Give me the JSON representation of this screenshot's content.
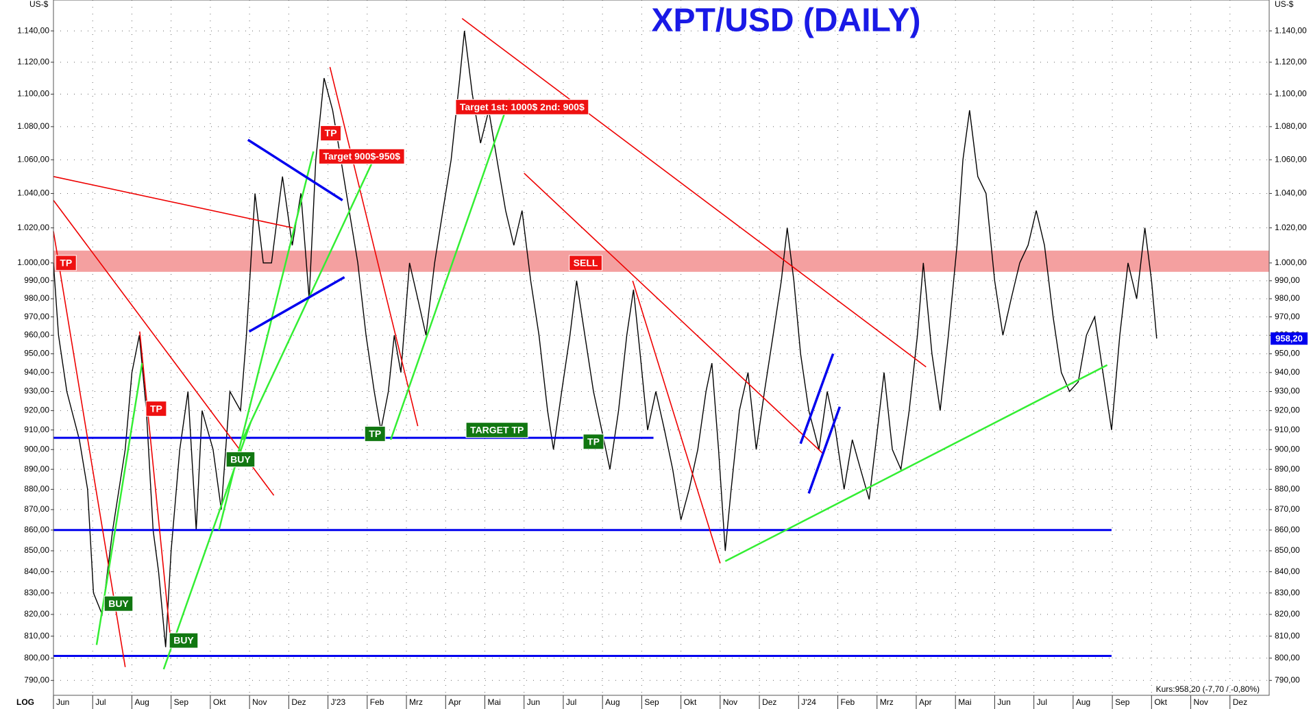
{
  "chart_data": {
    "type": "line",
    "title": "XPT/USD (DAILY)",
    "y_unit": "US-$",
    "scale_label": "LOG",
    "log": true,
    "grid": true,
    "xlim": [
      0,
      31
    ],
    "xticks": [
      {
        "value": 0,
        "label": "Jun"
      },
      {
        "value": 1,
        "label": "Jul"
      },
      {
        "value": 2,
        "label": "Aug"
      },
      {
        "value": 3,
        "label": "Sep"
      },
      {
        "value": 4,
        "label": "Okt"
      },
      {
        "value": 5,
        "label": "Nov"
      },
      {
        "value": 6,
        "label": "Dez"
      },
      {
        "value": 7,
        "label": "J'23"
      },
      {
        "value": 8,
        "label": "Feb"
      },
      {
        "value": 9,
        "label": "Mrz"
      },
      {
        "value": 10,
        "label": "Apr"
      },
      {
        "value": 11,
        "label": "Mai"
      },
      {
        "value": 12,
        "label": "Jun"
      },
      {
        "value": 13,
        "label": "Jul"
      },
      {
        "value": 14,
        "label": "Aug"
      },
      {
        "value": 15,
        "label": "Sep"
      },
      {
        "value": 16,
        "label": "Okt"
      },
      {
        "value": 17,
        "label": "Nov"
      },
      {
        "value": 18,
        "label": "Dez"
      },
      {
        "value": 19,
        "label": "J'24"
      },
      {
        "value": 20,
        "label": "Feb"
      },
      {
        "value": 21,
        "label": "Mrz"
      },
      {
        "value": 22,
        "label": "Apr"
      },
      {
        "value": 23,
        "label": "Mai"
      },
      {
        "value": 24,
        "label": "Jun"
      },
      {
        "value": 25,
        "label": "Jul"
      },
      {
        "value": 26,
        "label": "Aug"
      },
      {
        "value": 27,
        "label": "Sep"
      },
      {
        "value": 28,
        "label": "Okt"
      },
      {
        "value": 29,
        "label": "Nov"
      },
      {
        "value": 30,
        "label": "Dez"
      }
    ],
    "ylim": [
      784,
      1148
    ],
    "yticks": [
      {
        "value": 790,
        "label": "790,00"
      },
      {
        "value": 800,
        "label": "800,00"
      },
      {
        "value": 810,
        "label": "810,00"
      },
      {
        "value": 820,
        "label": "820,00"
      },
      {
        "value": 830,
        "label": "830,00"
      },
      {
        "value": 840,
        "label": "840,00"
      },
      {
        "value": 850,
        "label": "850,00"
      },
      {
        "value": 860,
        "label": "860,00"
      },
      {
        "value": 870,
        "label": "870,00"
      },
      {
        "value": 880,
        "label": "880,00"
      },
      {
        "value": 890,
        "label": "890,00"
      },
      {
        "value": 900,
        "label": "900,00"
      },
      {
        "value": 910,
        "label": "910,00"
      },
      {
        "value": 920,
        "label": "920,00"
      },
      {
        "value": 930,
        "label": "930,00"
      },
      {
        "value": 940,
        "label": "940,00"
      },
      {
        "value": 950,
        "label": "950,00"
      },
      {
        "value": 960,
        "label": "960,00"
      },
      {
        "value": 970,
        "label": "970,00"
      },
      {
        "value": 980,
        "label": "980,00"
      },
      {
        "value": 990,
        "label": "990,00"
      },
      {
        "value": 1000,
        "label": "1.000,00"
      },
      {
        "value": 1020,
        "label": "1.020,00"
      },
      {
        "value": 1040,
        "label": "1.040,00"
      },
      {
        "value": 1060,
        "label": "1.060,00"
      },
      {
        "value": 1080,
        "label": "1.080,00"
      },
      {
        "value": 1100,
        "label": "1.100,00"
      },
      {
        "value": 1120,
        "label": "1.120,00"
      },
      {
        "value": 1140,
        "label": "1.140,00"
      }
    ],
    "series": [
      {
        "color": "#000000",
        "x": [
          0,
          0.13,
          0.34,
          0.66,
          0.87,
          1.02,
          1.24,
          1.51,
          1.83,
          2.0,
          2.19,
          2.37,
          2.54,
          2.68,
          2.86,
          3.0,
          3.22,
          3.43,
          3.64,
          3.79,
          4.07,
          4.28,
          4.5,
          4.77,
          4.92,
          5.14,
          5.35,
          5.56,
          5.84,
          6.09,
          6.31,
          6.52,
          6.69,
          6.9,
          7.12,
          7.33,
          7.54,
          7.76,
          7.97,
          8.18,
          8.35,
          8.54,
          8.69,
          8.86,
          9.08,
          9.29,
          9.5,
          9.72,
          9.93,
          10.14,
          10.36,
          10.48,
          10.68,
          10.89,
          11.1,
          11.31,
          11.53,
          11.74,
          11.95,
          12.17,
          12.38,
          12.6,
          12.75,
          12.96,
          13.17,
          13.34,
          13.55,
          13.77,
          13.98,
          14.19,
          14.41,
          14.62,
          14.79,
          14.96,
          15.15,
          15.36,
          15.58,
          15.79,
          16.0,
          16.21,
          16.43,
          16.64,
          16.79,
          16.96,
          17.13,
          17.28,
          17.49,
          17.71,
          17.92,
          18.13,
          18.35,
          18.56,
          18.71,
          18.88,
          19.05,
          19.26,
          19.52,
          19.73,
          19.94,
          20.16,
          20.37,
          20.58,
          20.8,
          21.01,
          21.18,
          21.39,
          21.61,
          21.82,
          22.03,
          22.18,
          22.4,
          22.61,
          22.82,
          23.04,
          23.19,
          23.36,
          23.57,
          23.78,
          24.0,
          24.21,
          24.42,
          24.64,
          24.85,
          25.06,
          25.27,
          25.49,
          25.7,
          25.91,
          26.13,
          26.34,
          26.55,
          26.76,
          26.98,
          27.19,
          27.4,
          27.62,
          27.83,
          28.0,
          28.13
        ],
        "values": [
          1000,
          960,
          930,
          905,
          880,
          830,
          820,
          860,
          900,
          940,
          960,
          920,
          860,
          840,
          805,
          850,
          900,
          930,
          860,
          920,
          900,
          870,
          930,
          920,
          960,
          1040,
          1000,
          1000,
          1050,
          1010,
          1040,
          980,
          1060,
          1110,
          1090,
          1060,
          1030,
          1000,
          960,
          930,
          910,
          930,
          960,
          940,
          1000,
          980,
          960,
          1000,
          1030,
          1060,
          1110,
          1140,
          1100,
          1070,
          1090,
          1060,
          1030,
          1010,
          1030,
          990,
          960,
          920,
          900,
          930,
          960,
          990,
          960,
          930,
          910,
          890,
          920,
          960,
          985,
          950,
          910,
          930,
          910,
          890,
          865,
          880,
          900,
          930,
          945,
          900,
          850,
          880,
          920,
          940,
          900,
          930,
          960,
          990,
          1020,
          990,
          950,
          920,
          900,
          930,
          910,
          880,
          905,
          890,
          875,
          910,
          940,
          900,
          890,
          920,
          960,
          1000,
          950,
          920,
          960,
          1010,
          1060,
          1090,
          1050,
          1040,
          990,
          960,
          980,
          1000,
          1010,
          1030,
          1010,
          970,
          940,
          930,
          935,
          960,
          970,
          940,
          910,
          960,
          1000,
          980,
          1020,
          990,
          958.2
        ]
      }
    ],
    "band": {
      "color": "#f4a0a0",
      "values": [
        995,
        1007
      ]
    },
    "hlines": [
      {
        "value": 906,
        "color": "#0000ee",
        "x": [
          0,
          15.3
        ]
      },
      {
        "value": 860,
        "color": "#0000ee",
        "x": [
          0,
          26.98
        ]
      },
      {
        "value": 801,
        "color": "#0000ee",
        "x": [
          0,
          26.98
        ]
      }
    ],
    "trendlines": [
      {
        "color": "#ee0000",
        "x": [
          0,
          6.1
        ],
        "values": [
          1050,
          1020
        ]
      },
      {
        "color": "#ee0000",
        "x": [
          0,
          5.62
        ],
        "values": [
          1036,
          877
        ]
      },
      {
        "color": "#ee0000",
        "x": [
          0,
          1.83
        ],
        "values": [
          1018,
          796
        ]
      },
      {
        "color": "#ee0000",
        "x": [
          2.2,
          3.0
        ],
        "values": [
          962,
          806
        ]
      },
      {
        "color": "#ee0000",
        "x": [
          7.05,
          9.29
        ],
        "values": [
          1117,
          912
        ]
      },
      {
        "color": "#ee0000",
        "x": [
          10.42,
          22.25
        ],
        "values": [
          1148,
          943
        ]
      },
      {
        "color": "#ee0000",
        "x": [
          12.0,
          19.62
        ],
        "values": [
          1052,
          898
        ]
      },
      {
        "color": "#ee0000",
        "x": [
          14.77,
          17.0
        ],
        "values": [
          990,
          844
        ]
      },
      {
        "color": "#33ee33",
        "x": [
          1.1,
          2.26
        ],
        "values": [
          806,
          945
        ]
      },
      {
        "color": "#33ee33",
        "x": [
          2.81,
          5.03
        ],
        "values": [
          795,
          914
        ]
      },
      {
        "color": "#33ee33",
        "x": [
          4.22,
          6.63
        ],
        "values": [
          860,
          1065
        ]
      },
      {
        "color": "#33ee33",
        "x": [
          4.82,
          8.12
        ],
        "values": [
          905,
          1058
        ]
      },
      {
        "color": "#33ee33",
        "x": [
          8.6,
          11.63
        ],
        "values": [
          905,
          1097
        ]
      },
      {
        "color": "#33ee33",
        "x": [
          17.13,
          26.87
        ],
        "values": [
          845,
          944
        ]
      },
      {
        "color": "#0000ee",
        "x": [
          4.96,
          7.37
        ],
        "values": [
          1072,
          1036
        ]
      },
      {
        "color": "#0000ee",
        "x": [
          4.99,
          7.42
        ],
        "values": [
          962,
          992
        ]
      },
      {
        "color": "#0000ee",
        "x": [
          19.05,
          19.88
        ],
        "values": [
          903,
          950
        ]
      },
      {
        "color": "#0000ee",
        "x": [
          19.26,
          20.05
        ],
        "values": [
          878,
          922
        ]
      }
    ],
    "annotations": [
      {
        "text": "TP",
        "x": 0.32,
        "y": 1000,
        "color": "#ee1111"
      },
      {
        "text": "TP",
        "x": 2.62,
        "y": 921,
        "color": "#ee1111"
      },
      {
        "text": "TP",
        "x": 7.07,
        "y": 1076,
        "color": "#ee1111"
      },
      {
        "text": "Target 900$-950$",
        "x": 7.86,
        "y": 1062,
        "color": "#ee1111"
      },
      {
        "text": "Target 1st: 1000$ 2nd: 900$",
        "x": 11.95,
        "y": 1092,
        "color": "#ee1111"
      },
      {
        "text": "SELL",
        "x": 13.57,
        "y": 1000,
        "color": "#ee1111"
      },
      {
        "text": "BUY",
        "x": 1.66,
        "y": 825,
        "color": "#117711"
      },
      {
        "text": "BUY",
        "x": 3.32,
        "y": 808,
        "color": "#117711"
      },
      {
        "text": "BUY",
        "x": 4.77,
        "y": 895,
        "color": "#117711"
      },
      {
        "text": "TP",
        "x": 8.2,
        "y": 908,
        "color": "#117711"
      },
      {
        "text": "TARGET TP",
        "x": 11.31,
        "y": 910,
        "color": "#117711"
      },
      {
        "text": "TP",
        "x": 13.77,
        "y": 904,
        "color": "#117711"
      }
    ],
    "last_price": {
      "value": 958.2,
      "label": "958,20",
      "color": "#0000ee"
    },
    "footer": "Kurs:958,20 (-7,70 / -0,80%)"
  }
}
